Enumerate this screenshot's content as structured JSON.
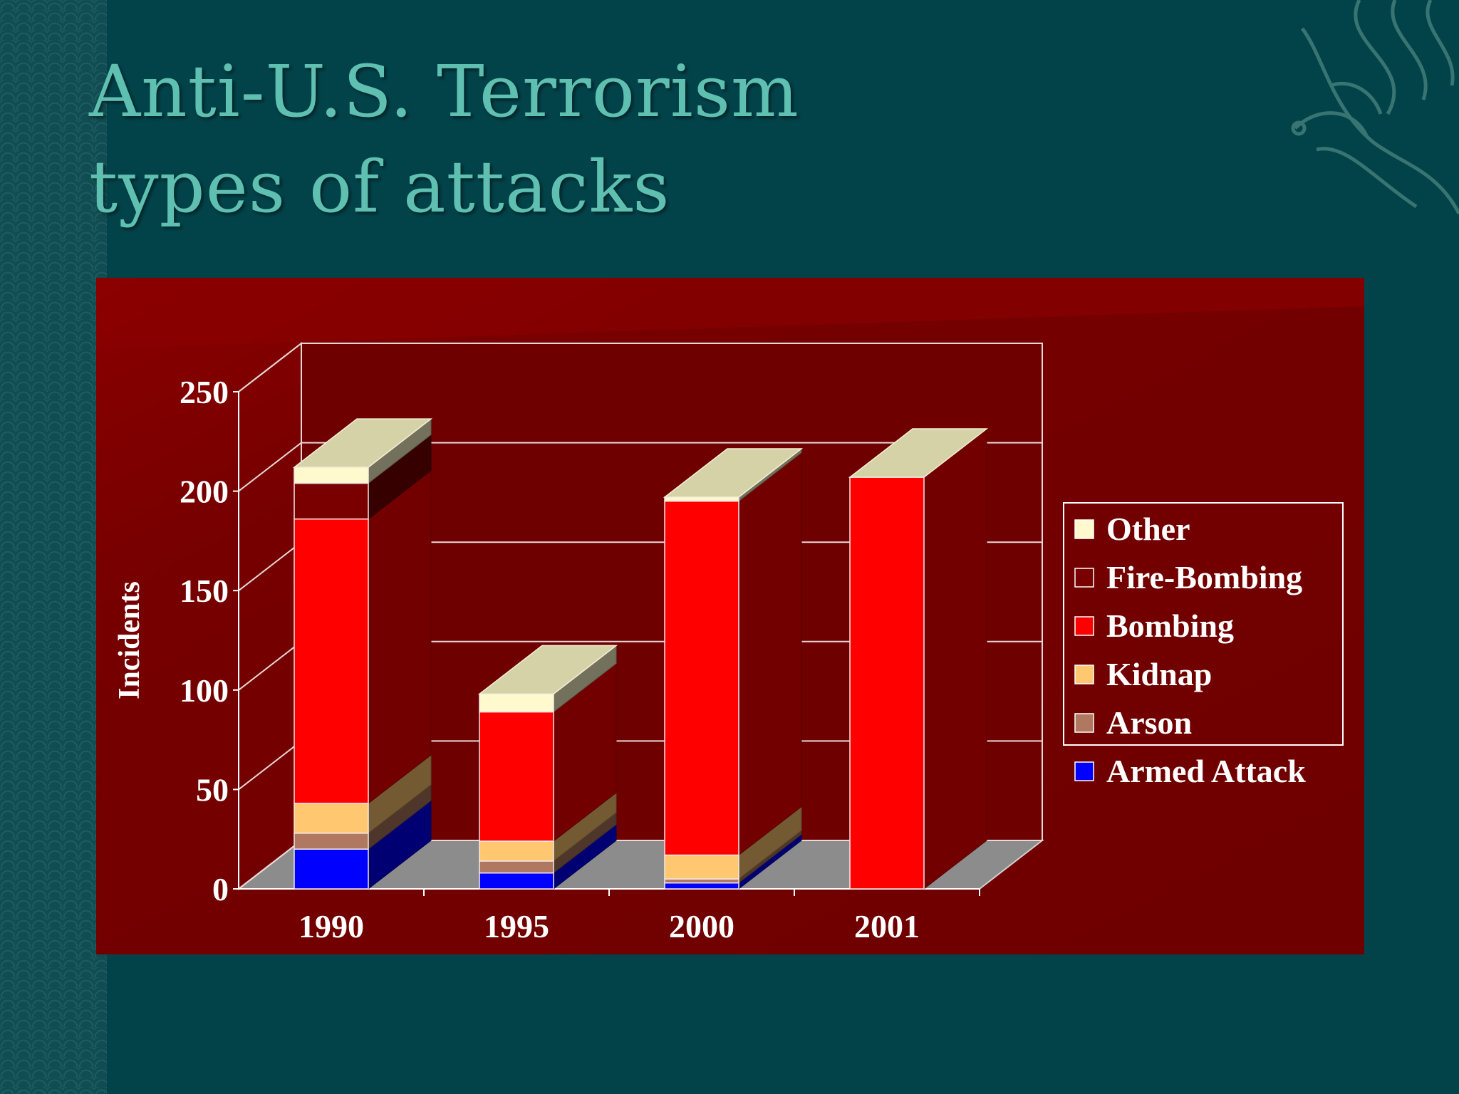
{
  "slide": {
    "title_line1": "Anti-U.S. Terrorism",
    "title_line2": "types of attacks"
  },
  "colors": {
    "background": "#02434a",
    "title": "#5fbfb0",
    "panel": "#7a0000"
  },
  "chart_data": {
    "type": "bar",
    "stacked": true,
    "style": "3d",
    "title": "",
    "xlabel": "",
    "ylabel": "Incidents",
    "categories": [
      "1990",
      "1995",
      "2000",
      "2001"
    ],
    "ylim": [
      0,
      250
    ],
    "yticks": [
      0,
      50,
      100,
      150,
      200,
      250
    ],
    "grid": true,
    "legend_position": "right",
    "series": [
      {
        "name": "Armed Attack",
        "color": "#0000ff",
        "values": [
          20,
          8,
          3,
          0
        ]
      },
      {
        "name": "Arson",
        "color": "#b07860",
        "values": [
          8,
          6,
          2,
          0
        ]
      },
      {
        "name": "Kidnap",
        "color": "#ffc870",
        "values": [
          15,
          10,
          12,
          0
        ]
      },
      {
        "name": "Bombing",
        "color": "#ff0000",
        "values": [
          143,
          65,
          178,
          207
        ]
      },
      {
        "name": "Fire-Bombing",
        "color": "#7a0000",
        "values": [
          18,
          0,
          0,
          0
        ]
      },
      {
        "name": "Other",
        "color": "#fffacd",
        "values": [
          8,
          9,
          2,
          0
        ]
      }
    ]
  }
}
